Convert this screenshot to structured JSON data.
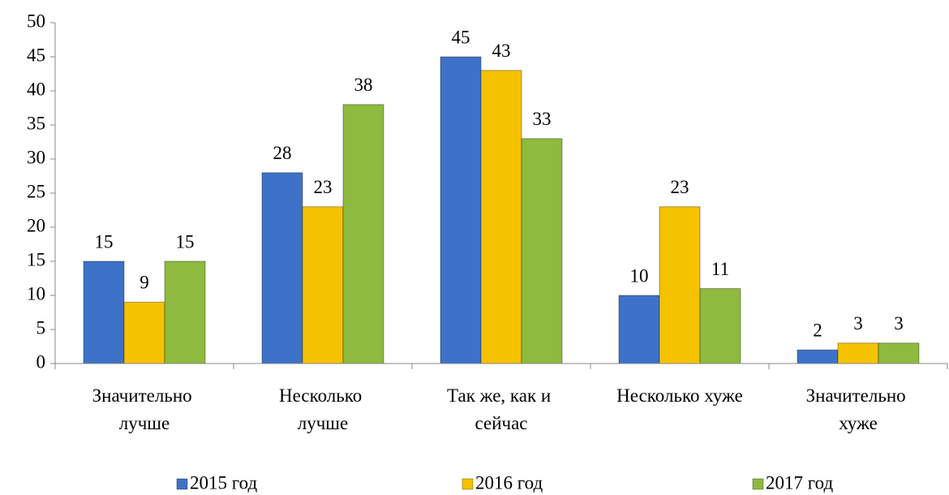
{
  "chart_data": {
    "type": "bar",
    "categories": [
      "Значительно лучше",
      "Несколько лучше",
      "Так же, как и сейчас",
      "Несколько хуже",
      "Значительно хуже"
    ],
    "series": [
      {
        "name": "2015 год",
        "color": "#3d72c8",
        "values": [
          15,
          28,
          45,
          10,
          2
        ]
      },
      {
        "name": "2016 год",
        "color": "#f5c200",
        "values": [
          9,
          23,
          43,
          23,
          3
        ]
      },
      {
        "name": "2017 год",
        "color": "#8dba3f",
        "values": [
          15,
          38,
          33,
          11,
          3
        ]
      }
    ],
    "ylim": [
      0,
      50
    ],
    "yticks": [
      0,
      5,
      10,
      15,
      20,
      25,
      30,
      35,
      40,
      45,
      50
    ],
    "legend": "bottom"
  }
}
